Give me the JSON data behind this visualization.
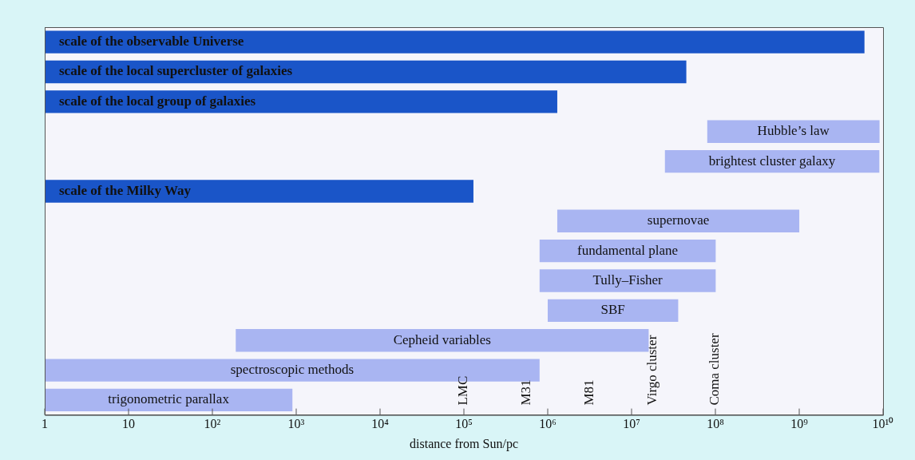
{
  "chart_data": {
    "type": "bar",
    "orientation": "horizontal",
    "log": "x",
    "xlabel": "distance from Sun/pc",
    "categories": [
      "scale of the observable Universe",
      "scale of the local supercluster of galaxies",
      "scale of the local group of galaxies",
      "Hubble’s law",
      "brightest cluster galaxy",
      "scale of the Milky Way",
      "supernovae",
      "fundamental plane",
      "Tully–Fisher",
      "SBF",
      "Cepheid variables",
      "spectroscopic methods",
      "trigonometric parallax"
    ],
    "base": [
      1,
      1,
      1,
      80000000,
      25000000,
      1,
      1300000,
      800000,
      800000,
      1000000,
      190,
      1,
      1
    ],
    "values": [
      6000000000,
      45000000,
      1300000,
      9000000000,
      9000000000,
      130000,
      1000000000,
      100000000,
      100000000,
      35000000,
      16000000,
      800000,
      900
    ],
    "colors": [
      "#1a55c8",
      "#1a55c8",
      "#1a55c8",
      "#a9b5f2",
      "#a9b5f2",
      "#1a55c8",
      "#a9b5f2",
      "#a9b5f2",
      "#a9b5f2",
      "#a9b5f2",
      "#a9b5f2",
      "#a9b5f2",
      "#a9b5f2"
    ],
    "xlim": [
      1,
      10000000000
    ],
    "xticks": [
      1,
      10,
      {
        "value": 100,
        "label": "10²"
      },
      {
        "value": 1000,
        "label": "10³"
      },
      {
        "value": 10000,
        "label": "10⁴"
      },
      {
        "value": 100000,
        "label": "10⁵"
      },
      {
        "value": 1000000,
        "label": "10⁶"
      },
      {
        "value": 10000000,
        "label": "10⁷"
      },
      {
        "value": 100000000,
        "label": "10⁸"
      },
      {
        "value": 1000000000,
        "label": "10⁹"
      },
      {
        "value": 10000000000,
        "label": "10¹⁰"
      }
    ],
    "annotations": [
      "LMC",
      "M31",
      "M81",
      "Virgo cluster",
      "Coma cluster"
    ],
    "grid": false,
    "legend": false
  }
}
